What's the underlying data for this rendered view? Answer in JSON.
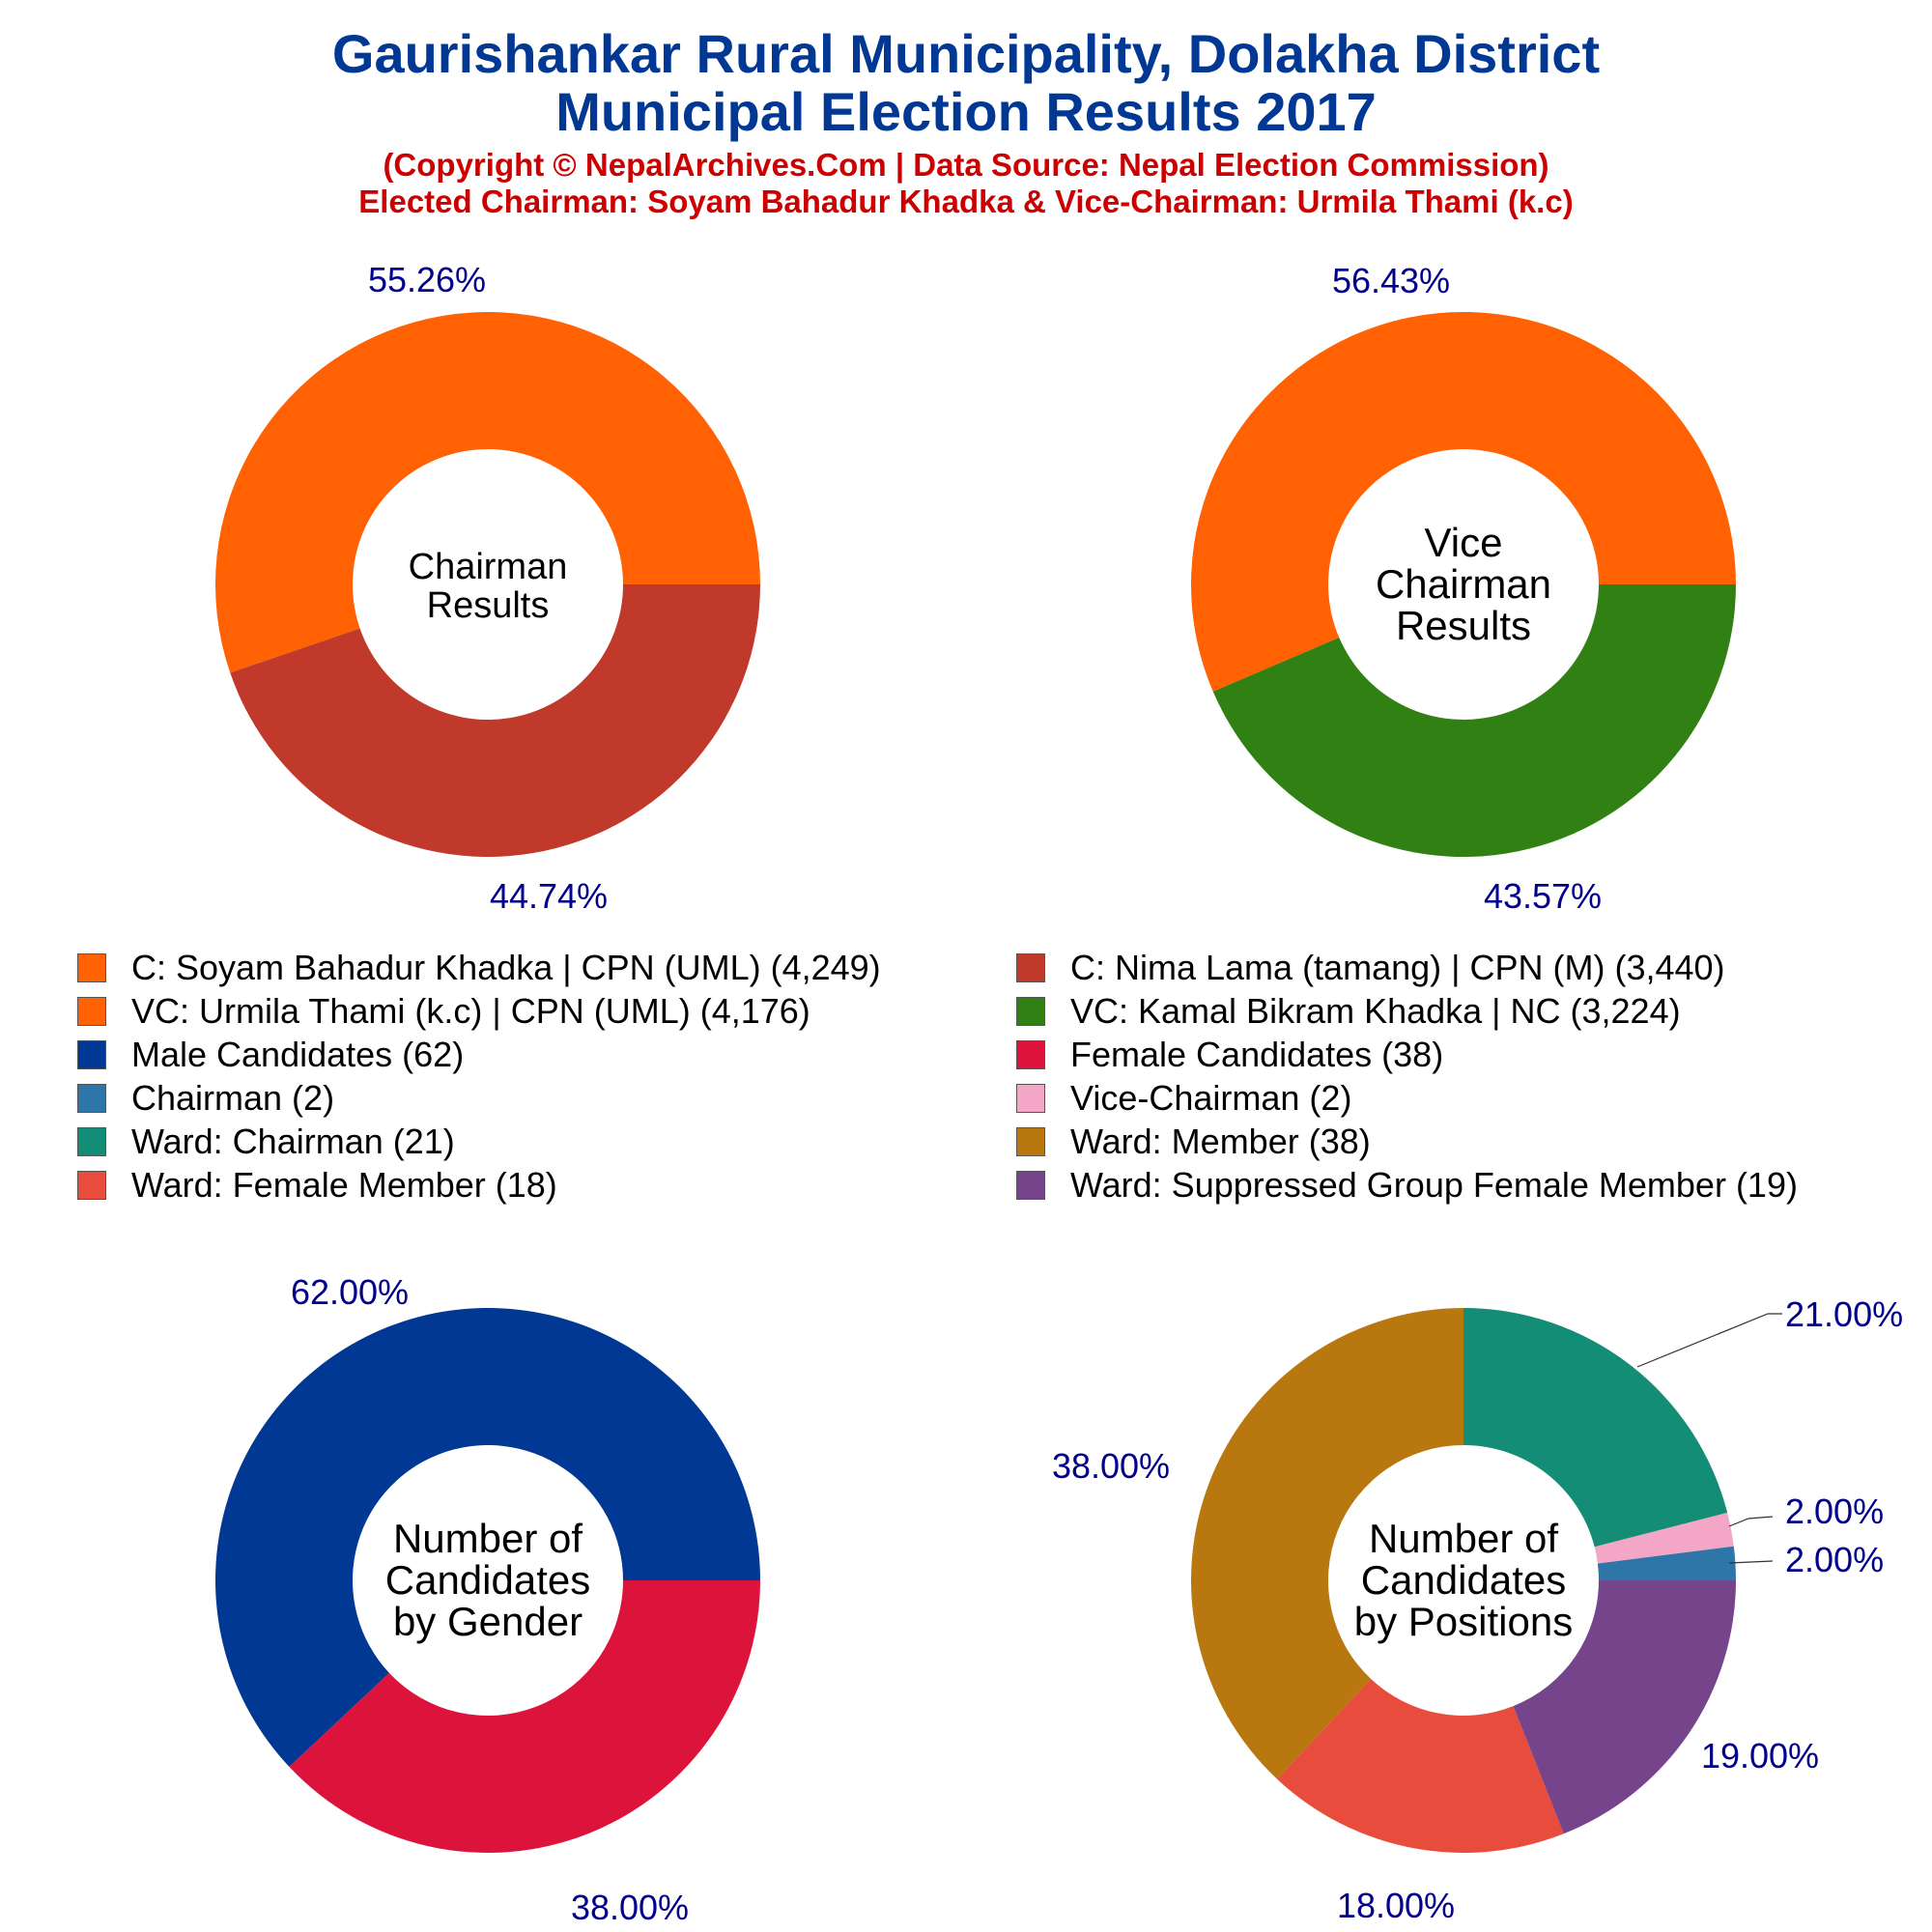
{
  "header": {
    "title_line1": "Gaurishankar Rural Municipality, Dolakha District",
    "title_line2": "Municipal Election Results 2017",
    "subtitle_line1": "(Copyright © NepalArchives.Com | Data Source: Nepal Election Commission)",
    "subtitle_line2": "Elected Chairman: Soyam Bahadur Khadka & Vice-Chairman: Urmila Thami (k.c)"
  },
  "legend": [
    {
      "label": "C: Soyam Bahadur Khadka | CPN (UML) (4,249)",
      "color": "#ff6103"
    },
    {
      "label": "C: Nima Lama (tamang) | CPN (M) (3,440)",
      "color": "#c0392b"
    },
    {
      "label": "VC: Urmila Thami (k.c) | CPN (UML) (4,176)",
      "color": "#ff6103"
    },
    {
      "label": "VC: Kamal Bikram Khadka | NC (3,224)",
      "color": "#308014"
    },
    {
      "label": "Male Candidates (62)",
      "color": "#003893"
    },
    {
      "label": "Female Candidates (38)",
      "color": "#dc143c"
    },
    {
      "label": "Chairman (2)",
      "color": "#2e75a8"
    },
    {
      "label": "Vice-Chairman (2)",
      "color": "#f4a6c6"
    },
    {
      "label": "Ward: Chairman (21)",
      "color": "#138d75"
    },
    {
      "label": "Ward: Member (38)",
      "color": "#b8770f"
    },
    {
      "label": "Ward: Female Member (18)",
      "color": "#e74c3c"
    },
    {
      "label": "Ward: Suppressed Group Female Member (19)",
      "color": "#76448a"
    }
  ],
  "chart_data": [
    {
      "type": "pie",
      "center_label": [
        "Chairman",
        "Results"
      ],
      "slices": [
        {
          "label": "C: Soyam Bahadur Khadka | CPN (UML)",
          "value": 4249,
          "percent_label": "55.26%",
          "color": "#ff6103"
        },
        {
          "label": "C: Nima Lama (tamang) | CPN (M)",
          "value": 3440,
          "percent_label": "44.74%",
          "color": "#c0392b"
        }
      ]
    },
    {
      "type": "pie",
      "center_label": [
        "Vice",
        "Chairman",
        "Results"
      ],
      "slices": [
        {
          "label": "VC: Urmila Thami (k.c) | CPN (UML)",
          "value": 4176,
          "percent_label": "56.43%",
          "color": "#ff6103"
        },
        {
          "label": "VC: Kamal Bikram Khadka | NC",
          "value": 3224,
          "percent_label": "43.57%",
          "color": "#308014"
        }
      ]
    },
    {
      "type": "pie",
      "center_label": [
        "Number of",
        "Candidates",
        "by Gender"
      ],
      "slices": [
        {
          "label": "Male Candidates",
          "value": 62,
          "percent_label": "62.00%",
          "color": "#003893"
        },
        {
          "label": "Female Candidates",
          "value": 38,
          "percent_label": "38.00%",
          "color": "#dc143c"
        }
      ]
    },
    {
      "type": "pie",
      "center_label": [
        "Number of",
        "Candidates",
        "by Positions"
      ],
      "slices": [
        {
          "label": "Chairman",
          "value": 2,
          "percent_label": "2.00%",
          "color": "#2e75a8"
        },
        {
          "label": "Vice-Chairman",
          "value": 2,
          "percent_label": "2.00%",
          "color": "#f4a6c6"
        },
        {
          "label": "Ward: Chairman",
          "value": 21,
          "percent_label": "21.00%",
          "color": "#138d75"
        },
        {
          "label": "Ward: Member",
          "value": 38,
          "percent_label": "38.00%",
          "color": "#b8770f"
        },
        {
          "label": "Ward: Female Member",
          "value": 18,
          "percent_label": "18.00%",
          "color": "#e74c3c"
        },
        {
          "label": "Ward: Suppressed Group Female Member",
          "value": 19,
          "percent_label": "19.00%",
          "color": "#76448a"
        }
      ]
    }
  ]
}
